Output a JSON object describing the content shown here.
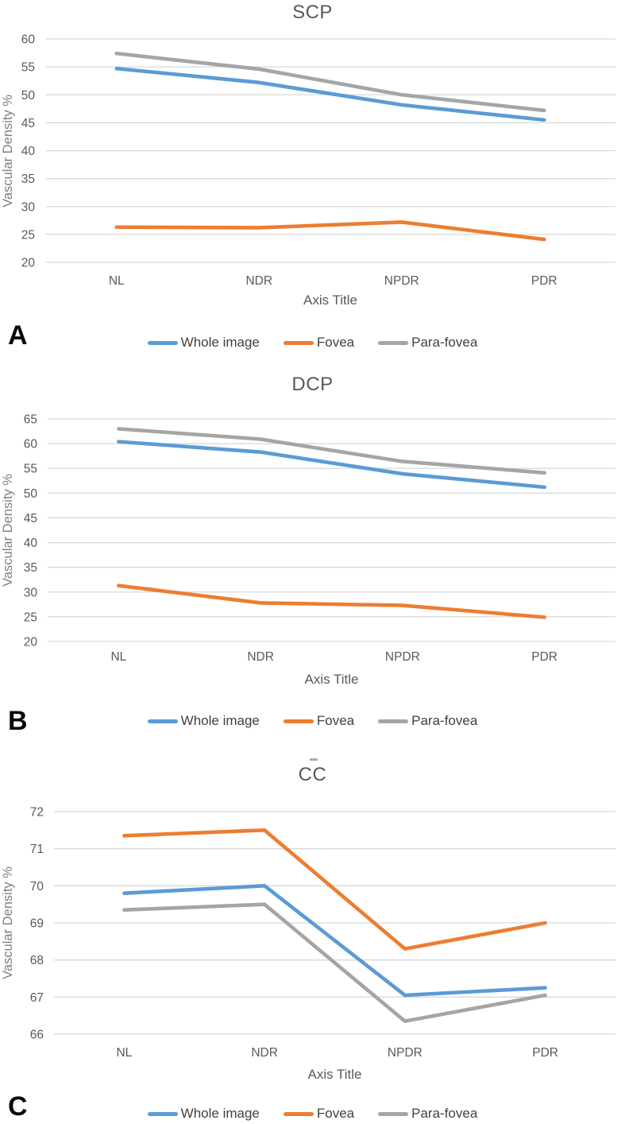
{
  "colors": {
    "whole_image": "#5B9BD5",
    "fovea": "#ED7D31",
    "para_fovea": "#A5A5A5",
    "gridline": "#D9D9D9",
    "axis_text": "#595959",
    "ylabel_text": "#7F7F7F",
    "title_text": "#595959",
    "legend_text": "#404040",
    "panel_letter": "#0A0A0A"
  },
  "legend": {
    "items": [
      {
        "label": "Whole image",
        "color": "#5B9BD5"
      },
      {
        "label": "Fovea",
        "color": "#ED7D31"
      },
      {
        "label": "Para-fovea",
        "color": "#A5A5A5"
      }
    ]
  },
  "chart_data": [
    {
      "type": "line",
      "panel_label": "A",
      "title": "SCP",
      "xlabel": "Axis Title",
      "ylabel": "Vascular Density %",
      "categories": [
        "NL",
        "NDR",
        "NPDR",
        "PDR"
      ],
      "ylim": [
        20,
        60
      ],
      "ytick_step": 5,
      "grid": true,
      "legend_position": "bottom",
      "series": [
        {
          "name": "Whole image",
          "color": "#5B9BD5",
          "values": [
            54.7,
            52.2,
            48.2,
            45.5
          ]
        },
        {
          "name": "Fovea",
          "color": "#ED7D31",
          "values": [
            26.3,
            26.2,
            27.2,
            24.1
          ]
        },
        {
          "name": "Para-fovea",
          "color": "#A5A5A5",
          "values": [
            57.4,
            54.6,
            50.0,
            47.2
          ]
        }
      ]
    },
    {
      "type": "line",
      "panel_label": "B",
      "title": "DCP",
      "xlabel": "Axis Title",
      "ylabel": "Vascular Density %",
      "categories": [
        "NL",
        "NDR",
        "NPDR",
        "PDR"
      ],
      "ylim": [
        20,
        65
      ],
      "ytick_step": 5,
      "grid": true,
      "legend_position": "bottom",
      "series": [
        {
          "name": "Whole image",
          "color": "#5B9BD5",
          "values": [
            60.4,
            58.3,
            53.9,
            51.2
          ]
        },
        {
          "name": "Fovea",
          "color": "#ED7D31",
          "values": [
            31.3,
            27.8,
            27.3,
            24.9
          ]
        },
        {
          "name": "Para-fovea",
          "color": "#A5A5A5",
          "values": [
            63.0,
            60.9,
            56.4,
            54.1
          ]
        }
      ]
    },
    {
      "type": "line",
      "panel_label": "C",
      "title": "CC",
      "xlabel": "Axis Title",
      "ylabel": "Vascular Density %",
      "categories": [
        "NL",
        "NDR",
        "NPDR",
        "PDR"
      ],
      "ylim": [
        66,
        72
      ],
      "ytick_step": 1,
      "grid": true,
      "legend_position": "bottom",
      "series": [
        {
          "name": "Whole image",
          "color": "#5B9BD5",
          "values": [
            69.8,
            70.0,
            67.05,
            67.25
          ]
        },
        {
          "name": "Fovea",
          "color": "#ED7D31",
          "values": [
            71.35,
            71.5,
            68.3,
            69.0
          ]
        },
        {
          "name": "Para-fovea",
          "color": "#A5A5A5",
          "values": [
            69.35,
            69.5,
            66.35,
            67.05
          ]
        }
      ]
    }
  ]
}
